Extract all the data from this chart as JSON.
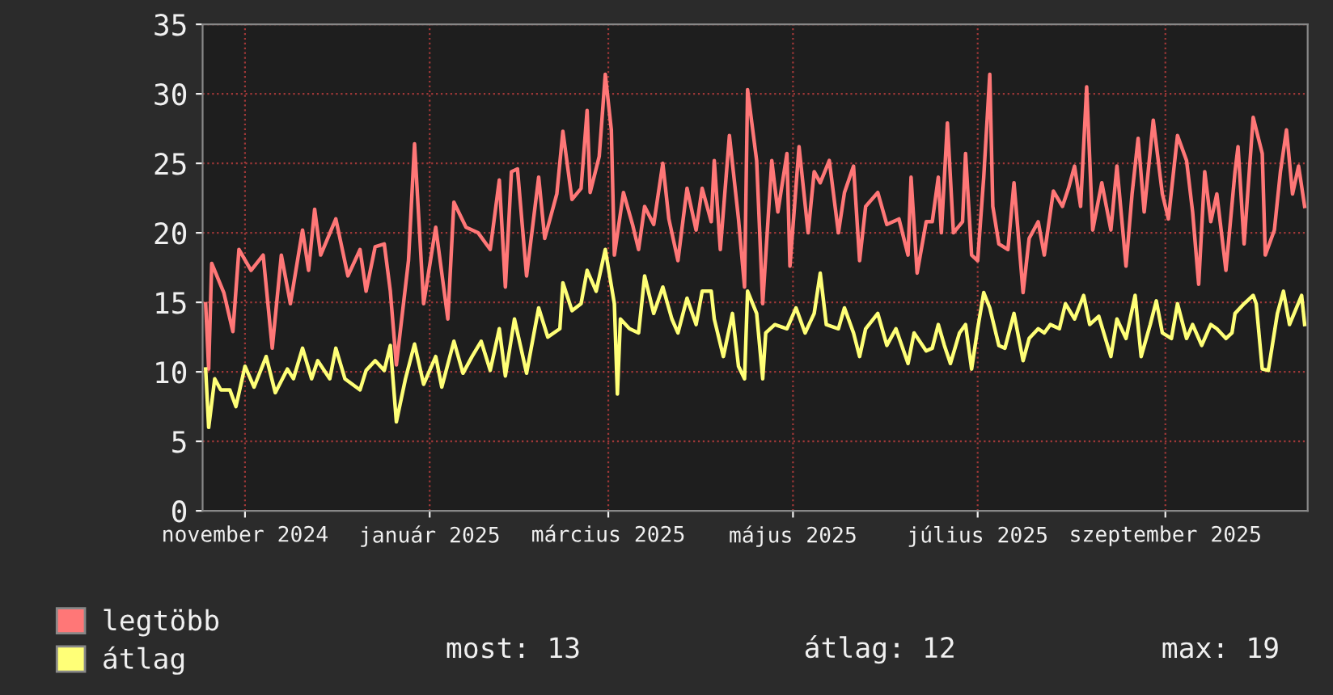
{
  "chart_data": {
    "type": "line",
    "xlim": [
      "2024-10-18",
      "2025-10-18"
    ],
    "xticks": [
      {
        "value": "2024-11-01",
        "label": "november 2024"
      },
      {
        "value": "2025-01-01",
        "label": "január 2025"
      },
      {
        "value": "2025-03-01",
        "label": "március 2025"
      },
      {
        "value": "2025-05-01",
        "label": "május 2025"
      },
      {
        "value": "2025-07-01",
        "label": "július 2025"
      },
      {
        "value": "2025-09-01",
        "label": "szeptember 2025"
      }
    ],
    "ylim": [
      0,
      35
    ],
    "yticks": [
      0,
      5,
      10,
      15,
      20,
      25,
      30,
      35
    ],
    "grid": true,
    "legend": "bottom left",
    "annotations": [
      "most: 13",
      "átlag: 12",
      "max: 19"
    ],
    "series": [
      {
        "name": "legtöbb",
        "color": "#ff7777",
        "x": [
          "2024-10-19",
          "2024-10-20",
          "2024-10-21",
          "2024-10-25",
          "2024-10-28",
          "2024-10-30",
          "2024-11-03",
          "2024-11-07",
          "2024-11-10",
          "2024-11-13",
          "2024-11-16",
          "2024-11-20",
          "2024-11-22",
          "2024-11-24",
          "2024-11-26",
          "2024-12-01",
          "2024-12-05",
          "2024-12-09",
          "2024-12-11",
          "2024-12-14",
          "2024-12-17",
          "2024-12-19",
          "2024-12-21",
          "2024-12-25",
          "2024-12-27",
          "2024-12-30",
          "2025-01-03",
          "2025-01-07",
          "2025-01-09",
          "2025-01-13",
          "2025-01-17",
          "2025-01-21",
          "2025-01-24",
          "2025-01-26",
          "2025-01-28",
          "2025-01-30",
          "2025-02-02",
          "2025-02-06",
          "2025-02-08",
          "2025-02-12",
          "2025-02-14",
          "2025-02-17",
          "2025-02-20",
          "2025-02-22",
          "2025-02-23",
          "2025-02-26",
          "2025-02-28",
          "2025-03-02",
          "2025-03-03",
          "2025-03-06",
          "2025-03-09",
          "2025-03-11",
          "2025-03-13",
          "2025-03-16",
          "2025-03-19",
          "2025-03-21",
          "2025-03-24",
          "2025-03-27",
          "2025-03-30",
          "2025-04-01",
          "2025-04-04",
          "2025-04-05",
          "2025-04-07",
          "2025-04-10",
          "2025-04-13",
          "2025-04-15",
          "2025-04-16",
          "2025-04-19",
          "2025-04-21",
          "2025-04-24",
          "2025-04-26",
          "2025-04-29",
          "2025-04-30",
          "2025-05-03",
          "2025-05-06",
          "2025-05-08",
          "2025-05-10",
          "2025-05-13",
          "2025-05-16",
          "2025-05-18",
          "2025-05-21",
          "2025-05-23",
          "2025-05-25",
          "2025-05-29",
          "2025-06-01",
          "2025-06-05",
          "2025-06-08",
          "2025-06-09",
          "2025-06-11",
          "2025-06-14",
          "2025-06-16",
          "2025-06-18",
          "2025-06-19",
          "2025-06-21",
          "2025-06-23",
          "2025-06-26",
          "2025-06-27",
          "2025-06-29",
          "2025-07-01",
          "2025-07-03",
          "2025-07-05",
          "2025-07-06",
          "2025-07-08",
          "2025-07-11",
          "2025-07-13",
          "2025-07-16",
          "2025-07-18",
          "2025-07-21",
          "2025-07-23",
          "2025-07-26",
          "2025-07-29",
          "2025-07-31",
          "2025-08-02",
          "2025-08-04",
          "2025-08-06",
          "2025-08-08",
          "2025-08-11",
          "2025-08-14",
          "2025-08-16",
          "2025-08-19",
          "2025-08-21",
          "2025-08-23",
          "2025-08-25",
          "2025-08-28",
          "2025-08-31",
          "2025-09-02",
          "2025-09-05",
          "2025-09-08",
          "2025-09-10",
          "2025-09-12",
          "2025-09-14",
          "2025-09-16",
          "2025-09-18",
          "2025-09-21",
          "2025-09-24",
          "2025-09-25",
          "2025-09-27",
          "2025-09-30",
          "2025-10-03",
          "2025-10-04",
          "2025-10-07",
          "2025-10-09",
          "2025-10-11",
          "2025-10-13",
          "2025-10-15",
          "2025-10-17"
        ],
        "values": [
          14.9,
          10.2,
          17.8,
          15.7,
          12.9,
          18.8,
          17.3,
          18.4,
          11.7,
          18.4,
          14.9,
          20.2,
          17.3,
          21.7,
          18.4,
          21,
          16.9,
          18.8,
          15.8,
          19,
          19.2,
          15.8,
          10.5,
          18,
          26.4,
          14.9,
          20.4,
          13.8,
          22.2,
          20.4,
          20,
          18.8,
          23.8,
          16.1,
          24.4,
          24.6,
          16.9,
          24,
          19.6,
          22.8,
          27.3,
          22.4,
          23.2,
          28.8,
          22.9,
          25.5,
          31.4,
          27.4,
          18.4,
          22.9,
          20.6,
          18.8,
          21.9,
          20.6,
          25,
          21,
          18,
          23.2,
          20.2,
          23.2,
          20.8,
          25.2,
          18.8,
          27,
          21,
          16.1,
          30.3,
          25.2,
          14.9,
          25.2,
          21.5,
          25.7,
          17.6,
          26.2,
          20,
          24.4,
          23.6,
          25.2,
          20,
          22.9,
          24.8,
          18,
          21.9,
          22.9,
          20.6,
          21,
          18.4,
          24,
          17.1,
          20.8,
          20.8,
          24,
          20,
          27.9,
          20,
          20.8,
          25.7,
          18.4,
          18,
          24,
          31.4,
          21.9,
          19.2,
          18.8,
          23.6,
          15.7,
          19.6,
          20.8,
          18.4,
          23,
          21.9,
          23.2,
          24.8,
          21.9,
          30.5,
          20.2,
          23.6,
          20.2,
          24.8,
          17.6,
          22.8,
          26.8,
          21.5,
          28.1,
          22.8,
          21,
          27,
          25.2,
          21.5,
          16.3,
          24.4,
          20.8,
          22.8,
          17.3,
          24.4,
          26.2,
          19.2,
          28.3,
          25.7,
          18.4,
          20.2,
          24.4,
          27.4,
          22.8,
          24.8,
          21.9
        ]
      },
      {
        "name": "átlag",
        "color": "#ffff77",
        "x": [
          "2024-10-19",
          "2024-10-20",
          "2024-10-22",
          "2024-10-24",
          "2024-10-27",
          "2024-10-29",
          "2024-11-01",
          "2024-11-04",
          "2024-11-08",
          "2024-11-11",
          "2024-11-15",
          "2024-11-17",
          "2024-11-20",
          "2024-11-23",
          "2024-11-25",
          "2024-11-29",
          "2024-12-01",
          "2024-12-04",
          "2024-12-09",
          "2024-12-11",
          "2024-12-14",
          "2024-12-17",
          "2024-12-19",
          "2024-12-21",
          "2024-12-24",
          "2024-12-27",
          "2024-12-30",
          "2025-01-03",
          "2025-01-05",
          "2025-01-09",
          "2025-01-12",
          "2025-01-15",
          "2025-01-18",
          "2025-01-21",
          "2025-01-24",
          "2025-01-26",
          "2025-01-29",
          "2025-02-02",
          "2025-02-06",
          "2025-02-09",
          "2025-02-13",
          "2025-02-14",
          "2025-02-17",
          "2025-02-20",
          "2025-02-22",
          "2025-02-25",
          "2025-02-28",
          "2025-03-03",
          "2025-03-04",
          "2025-03-05",
          "2025-03-08",
          "2025-03-11",
          "2025-03-13",
          "2025-03-16",
          "2025-03-19",
          "2025-03-22",
          "2025-03-24",
          "2025-03-27",
          "2025-03-30",
          "2025-04-01",
          "2025-04-04",
          "2025-04-05",
          "2025-04-08",
          "2025-04-11",
          "2025-04-13",
          "2025-04-15",
          "2025-04-16",
          "2025-04-19",
          "2025-04-21",
          "2025-04-22",
          "2025-04-25",
          "2025-04-29",
          "2025-05-02",
          "2025-05-05",
          "2025-05-08",
          "2025-05-10",
          "2025-05-12",
          "2025-05-16",
          "2025-05-18",
          "2025-05-21",
          "2025-05-23",
          "2025-05-25",
          "2025-05-29",
          "2025-06-01",
          "2025-06-04",
          "2025-06-08",
          "2025-06-10",
          "2025-06-14",
          "2025-06-16",
          "2025-06-18",
          "2025-06-20",
          "2025-06-22",
          "2025-06-25",
          "2025-06-27",
          "2025-06-29",
          "2025-07-01",
          "2025-07-03",
          "2025-07-05",
          "2025-07-08",
          "2025-07-10",
          "2025-07-13",
          "2025-07-16",
          "2025-07-18",
          "2025-07-21",
          "2025-07-23",
          "2025-07-25",
          "2025-07-28",
          "2025-07-30",
          "2025-08-02",
          "2025-08-05",
          "2025-08-07",
          "2025-08-10",
          "2025-08-14",
          "2025-08-16",
          "2025-08-19",
          "2025-08-22",
          "2025-08-24",
          "2025-08-27",
          "2025-08-29",
          "2025-08-31",
          "2025-09-03",
          "2025-09-05",
          "2025-09-08",
          "2025-09-10",
          "2025-09-13",
          "2025-09-16",
          "2025-09-18",
          "2025-09-21",
          "2025-09-23",
          "2025-09-24",
          "2025-09-27",
          "2025-09-30",
          "2025-10-01",
          "2025-10-03",
          "2025-10-05",
          "2025-10-08",
          "2025-10-10",
          "2025-10-12",
          "2025-10-16",
          "2025-10-17"
        ],
        "values": [
          10.2,
          6.0,
          9.5,
          8.7,
          8.7,
          7.5,
          10.4,
          8.9,
          11.1,
          8.5,
          10.2,
          9.5,
          11.7,
          9.5,
          10.8,
          9.5,
          11.7,
          9.5,
          8.7,
          10.1,
          10.8,
          10.1,
          11.9,
          6.4,
          9.5,
          12,
          9.1,
          11.1,
          8.9,
          12.2,
          9.9,
          11.1,
          12.2,
          10.1,
          13.1,
          9.7,
          13.8,
          9.9,
          14.6,
          12.5,
          13.1,
          16.4,
          14.4,
          14.9,
          17.3,
          15.8,
          18.8,
          14.9,
          8.4,
          13.8,
          13.1,
          12.8,
          16.9,
          14.2,
          16.1,
          13.8,
          12.8,
          15.3,
          13.4,
          15.8,
          15.8,
          13.8,
          11.1,
          14.2,
          10.4,
          9.5,
          15.8,
          14.2,
          9.5,
          12.8,
          13.4,
          13.1,
          14.6,
          12.8,
          14.2,
          17.1,
          13.4,
          13.1,
          14.6,
          12.8,
          11.1,
          13.1,
          14.2,
          11.9,
          13.1,
          10.6,
          12.8,
          11.5,
          11.7,
          13.4,
          11.9,
          10.6,
          12.8,
          13.4,
          10.2,
          13.1,
          15.7,
          14.6,
          11.9,
          11.7,
          14.2,
          10.8,
          12.4,
          13.1,
          12.8,
          13.4,
          13.1,
          14.9,
          13.8,
          15.5,
          13.4,
          14,
          11.1,
          13.8,
          12.4,
          15.5,
          11.1,
          13.4,
          15.1,
          12.8,
          12.4,
          14.9,
          12.4,
          13.4,
          11.9,
          13.4,
          13.1,
          12.4,
          12.8,
          14.2,
          14.9,
          15.5,
          14.9,
          10.2,
          10.1,
          14.2,
          15.8,
          13.4,
          15.5,
          13.4
        ]
      }
    ]
  }
}
